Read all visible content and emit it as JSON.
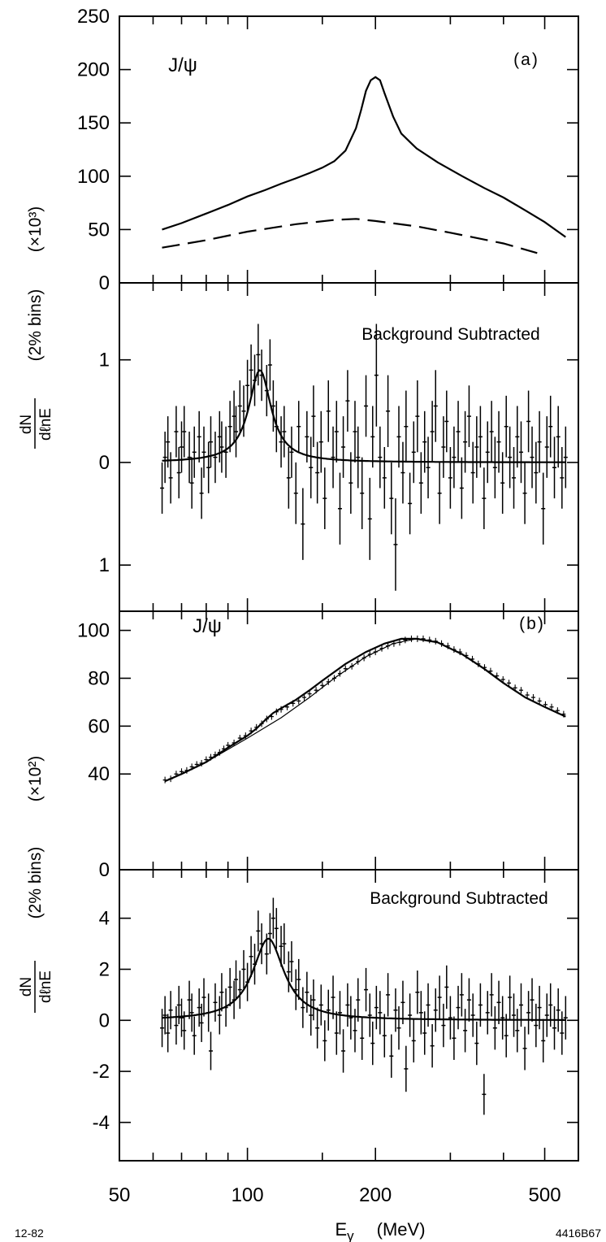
{
  "figure": {
    "x_axis_label": {
      "symbol": "E",
      "subscript": "γ",
      "unit": "(MeV)"
    },
    "x_ticks": [
      "50",
      "100",
      "200",
      "500"
    ],
    "corner_left": "12-82",
    "corner_right": "4416B67",
    "upper_y_label": {
      "bins": "(2% bins)",
      "scale": "(×10³)"
    },
    "lower_y_label": {
      "bins": "(2% bins)",
      "scale": "(×10²)"
    },
    "frac_numerator": "dN",
    "frac_denominator": "dℓnE"
  },
  "chart_data": [
    {
      "type": "line",
      "panel": "a-top",
      "tag": "(a)",
      "annotation": "J/ψ",
      "xscale": "log",
      "xlim": [
        50,
        600
      ],
      "ylim": [
        0,
        250
      ],
      "yticks": [
        "0",
        "50",
        "100",
        "150",
        "200",
        "250"
      ],
      "series": [
        {
          "style": "solid",
          "x": [
            63,
            70,
            80,
            90,
            100,
            110,
            120,
            130,
            140,
            150,
            160,
            170,
            180,
            185,
            190,
            195,
            200,
            205,
            210,
            220,
            230,
            250,
            280,
            320,
            360,
            400,
            450,
            500,
            560
          ],
          "y": [
            50,
            56,
            65,
            73,
            81,
            87,
            93,
            98,
            103,
            108,
            114,
            124,
            145,
            162,
            180,
            190,
            193,
            190,
            178,
            156,
            140,
            126,
            113,
            100,
            89,
            80,
            68,
            57,
            43
          ]
        },
        {
          "style": "dashed",
          "x": [
            63,
            80,
            100,
            130,
            160,
            180,
            200,
            250,
            300,
            400,
            480
          ],
          "y": [
            33,
            40,
            48,
            55,
            59,
            60,
            58,
            53,
            47,
            37,
            28
          ]
        }
      ]
    },
    {
      "type": "scatter",
      "panel": "a-bottom",
      "title": "Background Subtracted",
      "xscale": "log",
      "xlim": [
        50,
        600
      ],
      "ylim": [
        -1.45,
        1.75
      ],
      "yticks": [
        1,
        0,
        -1
      ],
      "yticklabels": [
        "1",
        "0",
        "1"
      ],
      "points": {
        "x": [
          63,
          64,
          65,
          66,
          68,
          69,
          70,
          71,
          73,
          74,
          75,
          77,
          78,
          79,
          81,
          82,
          84,
          86,
          87,
          89,
          91,
          93,
          94,
          96,
          98,
          100,
          102,
          104,
          106,
          108,
          111,
          113,
          115,
          117,
          120,
          122,
          125,
          127,
          130,
          132,
          135,
          138,
          141,
          143,
          146,
          149,
          152,
          155,
          159,
          162,
          165,
          168,
          172,
          175,
          179,
          182,
          186,
          190,
          194,
          197,
          201,
          205,
          210,
          214,
          218,
          223,
          227,
          232,
          236,
          241,
          246,
          251,
          256,
          261,
          266,
          272,
          277,
          283,
          289,
          294,
          300,
          306,
          313,
          319,
          325,
          332,
          339,
          346,
          353,
          360,
          367,
          375,
          382,
          390,
          398,
          406,
          414,
          423,
          431,
          440,
          449,
          458,
          467,
          477,
          486,
          496,
          506,
          516,
          527,
          538,
          549,
          560
        ],
        "y": [
          -0.25,
          0.05,
          0.2,
          -0.15,
          0.3,
          -0.1,
          0.15,
          0.3,
          0.05,
          -0.2,
          0.1,
          0.25,
          -0.3,
          0.1,
          -0.05,
          0.2,
          0.05,
          0.25,
          0.15,
          0.1,
          0.35,
          0.45,
          0.3,
          0.55,
          0.5,
          0.75,
          0.9,
          0.8,
          1.05,
          0.85,
          0.7,
          0.95,
          0.55,
          0.35,
          0.2,
          0.3,
          -0.15,
          0.1,
          -0.3,
          0.35,
          -0.6,
          0.25,
          -0.05,
          0.45,
          -0.1,
          0.2,
          -0.35,
          0.5,
          0.05,
          0.3,
          -0.45,
          0.15,
          0.6,
          -0.2,
          0.3,
          0.05,
          -0.3,
          0.55,
          -0.55,
          0.25,
          0.85,
          0.05,
          -0.15,
          0.5,
          -0.35,
          -0.8,
          0.25,
          -0.1,
          0.35,
          -0.4,
          0.1,
          0.45,
          -0.2,
          0.2,
          -0.05,
          0.3,
          0.55,
          -0.3,
          0.15,
          0.4,
          -0.15,
          0.05,
          0.3,
          -0.25,
          0.2,
          0.45,
          -0.1,
          0.15,
          0.25,
          -0.35,
          0.1,
          0.3,
          -0.05,
          0.2,
          -0.2,
          0.35,
          0.05,
          -0.15,
          0.25,
          0.1,
          -0.3,
          0.4,
          0.05,
          -0.1,
          0.2,
          -0.45,
          0.15,
          0.35,
          -0.05,
          0.25,
          -0.15,
          0.05
        ],
        "err": [
          0.25,
          0.25,
          0.25,
          0.25,
          0.25,
          0.25,
          0.25,
          0.25,
          0.25,
          0.25,
          0.25,
          0.25,
          0.25,
          0.25,
          0.25,
          0.25,
          0.25,
          0.25,
          0.25,
          0.25,
          0.25,
          0.25,
          0.25,
          0.25,
          0.25,
          0.25,
          0.25,
          0.25,
          0.3,
          0.25,
          0.25,
          0.25,
          0.25,
          0.25,
          0.25,
          0.25,
          0.3,
          0.25,
          0.3,
          0.25,
          0.35,
          0.25,
          0.3,
          0.3,
          0.3,
          0.3,
          0.3,
          0.3,
          0.3,
          0.3,
          0.35,
          0.3,
          0.3,
          0.3,
          0.3,
          0.3,
          0.35,
          0.3,
          0.4,
          0.3,
          0.5,
          0.3,
          0.3,
          0.35,
          0.35,
          0.45,
          0.3,
          0.3,
          0.35,
          0.3,
          0.3,
          0.35,
          0.3,
          0.3,
          0.3,
          0.3,
          0.35,
          0.3,
          0.3,
          0.3,
          0.3,
          0.3,
          0.3,
          0.3,
          0.3,
          0.3,
          0.3,
          0.3,
          0.3,
          0.3,
          0.3,
          0.3,
          0.3,
          0.3,
          0.3,
          0.3,
          0.3,
          0.3,
          0.3,
          0.3,
          0.3,
          0.3,
          0.3,
          0.3,
          0.3,
          0.35,
          0.3,
          0.3,
          0.3,
          0.3,
          0.3,
          0.3
        ]
      },
      "fit": {
        "baseline": 0,
        "peak": 0.9,
        "center": 107,
        "width_log10": 0.032,
        "x_start": 63,
        "x_end": 560
      }
    },
    {
      "type": "line",
      "panel": "b-top",
      "tag": "(b)",
      "annotation": "J/ψ",
      "xscale": "log",
      "xlim": [
        50,
        600
      ],
      "ylim": [
        0,
        108
      ],
      "yticks": [
        "0",
        "40",
        "60",
        "80",
        "100"
      ],
      "series": [
        {
          "style": "solid",
          "x": [
            64,
            70,
            80,
            90,
            100,
            105,
            110,
            115,
            120,
            130,
            140,
            150,
            170,
            190,
            210,
            230,
            250,
            280,
            320,
            360,
            400,
            450,
            500,
            560
          ],
          "y": [
            37,
            40,
            45,
            51,
            56,
            59,
            62.5,
            65.5,
            67.5,
            71,
            75,
            79,
            86,
            91,
            94.5,
            96.5,
            96.5,
            95,
            90,
            84,
            78,
            72,
            68,
            64
          ]
        },
        {
          "style": "thin",
          "x": [
            64,
            80,
            100,
            120,
            140,
            160,
            190,
            220,
            250,
            280
          ],
          "y": [
            37,
            45,
            55,
            63.5,
            72,
            80,
            89,
            94.5,
            96.5,
            95
          ]
        },
        {
          "style": "bins",
          "x": [
            64,
            66,
            68,
            70,
            72,
            74,
            76,
            78,
            80,
            82,
            84,
            86,
            88,
            90,
            93,
            96,
            99,
            102,
            105,
            108,
            111,
            114,
            117,
            120,
            124,
            128,
            132,
            136,
            140,
            145,
            150,
            155,
            160,
            165,
            170,
            176,
            182,
            188,
            194,
            200,
            207,
            214,
            221,
            228,
            235,
            243,
            251,
            259,
            268,
            277,
            286,
            296,
            306,
            316,
            327,
            338,
            349,
            361,
            373,
            386,
            399,
            412,
            426,
            440,
            455,
            470,
            486,
            502,
            519,
            536,
            554
          ],
          "y": [
            37.5,
            38,
            40,
            41,
            41.5,
            43,
            44,
            44.5,
            46,
            47,
            48,
            49,
            50.5,
            52,
            53,
            55,
            56,
            58,
            59.5,
            61,
            63,
            64,
            66,
            67,
            68,
            69.5,
            70.5,
            72,
            73.5,
            75,
            77,
            78.5,
            80,
            82,
            84,
            85,
            87,
            88.5,
            90,
            91,
            92.5,
            93.5,
            94.5,
            95,
            96,
            96.5,
            96.5,
            96.5,
            96,
            95.5,
            94.5,
            93.5,
            92,
            91,
            89.5,
            88,
            86,
            84.5,
            83,
            81,
            79.5,
            78,
            76,
            75,
            73,
            72,
            70.5,
            69,
            68,
            66.5,
            65
          ]
        }
      ]
    },
    {
      "type": "scatter",
      "panel": "b-bottom",
      "title": "Background Subtracted",
      "xscale": "log",
      "xlim": [
        50,
        600
      ],
      "ylim": [
        -5.5,
        5.9
      ],
      "yticks": [
        4,
        2,
        0,
        -2,
        -4
      ],
      "yticklabels": [
        "4",
        "2",
        "0",
        "-2",
        "-4"
      ],
      "points": {
        "x": [
          63,
          64,
          65,
          66,
          68,
          69,
          70,
          71,
          73,
          74,
          75,
          77,
          78,
          79,
          81,
          82,
          84,
          86,
          87,
          89,
          91,
          93,
          94,
          96,
          98,
          100,
          102,
          104,
          106,
          108,
          111,
          113,
          115,
          117,
          120,
          122,
          125,
          127,
          130,
          132,
          135,
          138,
          141,
          143,
          146,
          149,
          152,
          155,
          159,
          162,
          165,
          168,
          172,
          175,
          179,
          182,
          186,
          190,
          194,
          197,
          201,
          205,
          210,
          214,
          218,
          223,
          227,
          232,
          236,
          241,
          246,
          251,
          256,
          261,
          266,
          272,
          277,
          283,
          289,
          294,
          300,
          306,
          313,
          319,
          325,
          332,
          339,
          346,
          353,
          360,
          367,
          375,
          382,
          390,
          398,
          406,
          414,
          423,
          431,
          440,
          449,
          458,
          467,
          477,
          486,
          496,
          506,
          516,
          527,
          538,
          549,
          560
        ],
        "y": [
          -0.3,
          0.2,
          -0.5,
          0.4,
          -0.2,
          0.6,
          0.1,
          -0.4,
          0.8,
          0.3,
          -0.6,
          0.5,
          -0.1,
          0.9,
          0.3,
          -1.2,
          0.7,
          0.2,
          1.1,
          0.5,
          1.3,
          0.8,
          1.6,
          1.2,
          2.0,
          1.5,
          2.5,
          2.2,
          3.5,
          3.0,
          2.6,
          3.4,
          4.0,
          3.6,
          2.9,
          3.0,
          1.9,
          2.3,
          1.2,
          1.6,
          0.5,
          1.1,
          0.2,
          0.8,
          -0.3,
          0.6,
          -0.8,
          0.4,
          0.9,
          -0.5,
          0.3,
          -1.2,
          0.6,
          0.1,
          -0.4,
          0.8,
          -0.7,
          1.2,
          0.2,
          -0.9,
          0.5,
          0.3,
          -0.6,
          1.0,
          -1.4,
          0.4,
          -0.3,
          0.7,
          -1.9,
          0.2,
          -0.8,
          1.1,
          0.3,
          -0.5,
          0.6,
          -1.0,
          0.4,
          0.9,
          -0.2,
          1.3,
          0.1,
          -0.7,
          0.5,
          1.0,
          -0.4,
          0.8,
          0.2,
          -0.9,
          0.6,
          -2.9,
          0.3,
          1.0,
          -0.3,
          0.7,
          0.1,
          -0.6,
          0.9,
          0.2,
          -0.4,
          0.6,
          -1.1,
          0.3,
          0.8,
          -0.2,
          0.5,
          -0.8,
          0.2,
          0.6,
          -0.3,
          0.4,
          -0.5,
          0.1
        ],
        "err": [
          0.75,
          0.75,
          0.75,
          0.75,
          0.75,
          0.75,
          0.75,
          0.75,
          0.75,
          0.75,
          0.75,
          0.75,
          0.75,
          0.75,
          0.75,
          0.75,
          0.75,
          0.75,
          0.75,
          0.75,
          0.75,
          0.75,
          0.75,
          0.75,
          0.75,
          0.75,
          0.8,
          0.8,
          0.8,
          0.8,
          0.8,
          0.8,
          0.8,
          0.8,
          0.8,
          0.8,
          0.8,
          0.8,
          0.8,
          0.8,
          0.8,
          0.8,
          0.8,
          0.8,
          0.8,
          0.8,
          0.8,
          0.8,
          0.85,
          0.85,
          0.85,
          0.85,
          0.85,
          0.85,
          0.85,
          0.85,
          0.85,
          0.85,
          0.85,
          0.85,
          0.85,
          0.85,
          0.85,
          0.85,
          0.85,
          0.85,
          0.85,
          0.85,
          0.9,
          0.85,
          0.85,
          0.85,
          0.85,
          0.85,
          0.85,
          0.85,
          0.85,
          0.85,
          0.85,
          0.85,
          0.85,
          0.85,
          0.85,
          0.85,
          0.85,
          0.85,
          0.85,
          0.85,
          0.85,
          0.8,
          0.85,
          0.85,
          0.85,
          0.85,
          0.85,
          0.85,
          0.85,
          0.85,
          0.85,
          0.85,
          0.85,
          0.85,
          0.85,
          0.85,
          0.85,
          0.85,
          0.85,
          0.85,
          0.85,
          0.85,
          0.85,
          0.85
        ]
      },
      "fit": {
        "baseline": 0,
        "peak": 3.2,
        "center": 112,
        "width_log10": 0.045,
        "x_start": 63,
        "x_end": 560
      }
    }
  ]
}
